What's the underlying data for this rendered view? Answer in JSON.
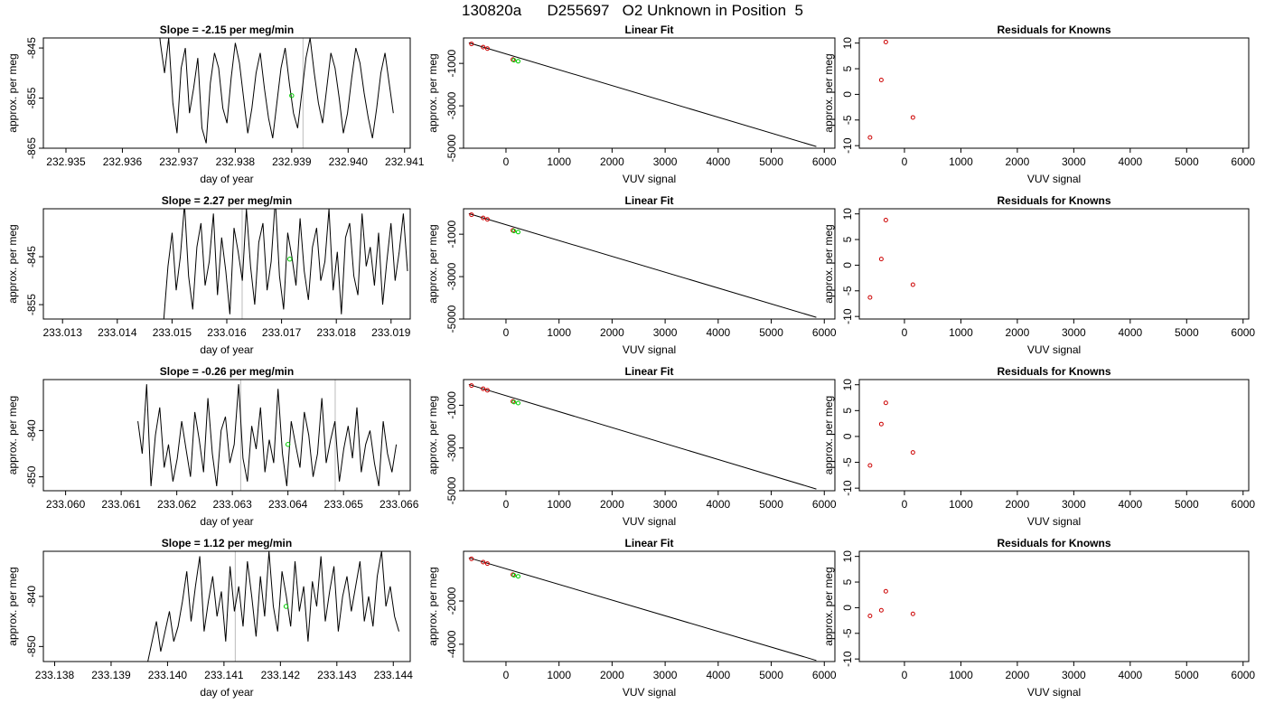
{
  "page_title": "130820a      D255697   O2 Unknown in Position  5",
  "colors": {
    "trace": "#000000",
    "marker_green": "#00cc00",
    "marker_red": "#cc0000",
    "gray_line": "#bbbbbb"
  },
  "chart_data": [
    {
      "type": "line",
      "title": "Slope =  -2.15  per meg/min",
      "xlabel": "day of year",
      "ylabel": "approx. per meg",
      "xlim": [
        232.9346,
        232.9411
      ],
      "ylim": [
        -865,
        -843
      ],
      "xticks": [
        "232.935",
        "232.936",
        "232.937",
        "232.938",
        "232.939",
        "232.940",
        "232.941"
      ],
      "yticks": [
        "-845",
        "-855",
        "-865"
      ],
      "gray_lines": [
        232.9392
      ],
      "x_start": 232.9366,
      "x_end": 232.9408,
      "y": [
        -836,
        -844,
        -850,
        -843,
        -856,
        -862,
        -849,
        -845,
        -858,
        -853,
        -847,
        -861,
        -864,
        -852,
        -846,
        -849,
        -857,
        -860,
        -851,
        -844,
        -848,
        -855,
        -862,
        -857,
        -850,
        -846,
        -853,
        -859,
        -863,
        -856,
        -849,
        -845,
        -852,
        -858,
        -861,
        -854,
        -847,
        -843,
        -850,
        -856,
        -860,
        -853,
        -846,
        -849,
        -855,
        -862,
        -858,
        -851,
        -845,
        -848,
        -854,
        -859,
        -863,
        -857,
        -850,
        -846,
        -852,
        -858
      ],
      "green_point": {
        "x": 232.939,
        "y": -854.5
      }
    },
    {
      "type": "scatter",
      "title": "Linear Fit",
      "xlabel": "VUV signal",
      "ylabel": "approx. per meg",
      "xlim": [
        -800,
        6200
      ],
      "ylim": [
        -5000,
        200
      ],
      "xticks": [
        0,
        1000,
        2000,
        3000,
        4000,
        5000,
        6000
      ],
      "yticks": [
        -1000,
        -3000,
        -5000
      ],
      "red_points": [
        {
          "x": -650,
          "y": -80
        },
        {
          "x": -430,
          "y": -230
        },
        {
          "x": -350,
          "y": -300
        },
        {
          "x": 130,
          "y": -820
        }
      ],
      "green_points": [
        {
          "x": 150,
          "y": -850
        },
        {
          "x": 230,
          "y": -900
        }
      ],
      "fit_line": {
        "x1": -700,
        "y1": -30,
        "x2": 5850,
        "y2": -4920
      }
    },
    {
      "type": "scatter",
      "title": "Residuals for Knowns",
      "xlabel": "VUV signal",
      "ylabel": "approx. per meg",
      "xlim": [
        -800,
        6100
      ],
      "ylim": [
        -10.5,
        11
      ],
      "xticks": [
        0,
        1000,
        2000,
        3000,
        4000,
        5000,
        6000
      ],
      "yticks": [
        10,
        5,
        0,
        -5,
        -10
      ],
      "red_points": [
        {
          "x": -610,
          "y": -8.4
        },
        {
          "x": -410,
          "y": 2.8
        },
        {
          "x": -330,
          "y": 10.2
        },
        {
          "x": 150,
          "y": -4.5
        }
      ]
    },
    {
      "type": "line",
      "title": "Slope =  2.27  per meg/min",
      "xlabel": "day of year",
      "ylabel": "approx. per meg",
      "xlim": [
        233.01265,
        233.01935
      ],
      "ylim": [
        -858,
        -835
      ],
      "xticks": [
        "233.013",
        "233.014",
        "233.015",
        "233.016",
        "233.017",
        "233.018",
        "233.019"
      ],
      "yticks": [
        "-845",
        "-855"
      ],
      "gray_lines": [
        233.01628
      ],
      "x_start": 233.01485,
      "x_end": 233.0193,
      "y": [
        -858,
        -847,
        -840,
        -852,
        -845,
        -834,
        -849,
        -856,
        -843,
        -838,
        -851,
        -846,
        -836,
        -853,
        -841,
        -848,
        -857,
        -839,
        -844,
        -850,
        -835,
        -847,
        -855,
        -842,
        -838,
        -852,
        -846,
        -833,
        -849,
        -856,
        -840,
        -845,
        -851,
        -837,
        -848,
        -854,
        -843,
        -839,
        -850,
        -846,
        -835,
        -852,
        -844,
        -857,
        -841,
        -838,
        -849,
        -853,
        -836,
        -847,
        -843,
        -851,
        -840,
        -855,
        -846,
        -838,
        -850,
        -844,
        -836,
        -848
      ],
      "green_point": {
        "x": 233.01715,
        "y": -845.5
      }
    },
    {
      "type": "scatter",
      "title": "Linear Fit",
      "xlabel": "VUV signal",
      "ylabel": "approx. per meg",
      "xlim": [
        -800,
        6200
      ],
      "ylim": [
        -5000,
        200
      ],
      "xticks": [
        0,
        1000,
        2000,
        3000,
        4000,
        5000,
        6000
      ],
      "yticks": [
        -1000,
        -3000,
        -5000
      ],
      "red_points": [
        {
          "x": -650,
          "y": -80
        },
        {
          "x": -430,
          "y": -230
        },
        {
          "x": -350,
          "y": -300
        },
        {
          "x": 130,
          "y": -820
        }
      ],
      "green_points": [
        {
          "x": 150,
          "y": -850
        },
        {
          "x": 230,
          "y": -900
        }
      ],
      "fit_line": {
        "x1": -700,
        "y1": -30,
        "x2": 5850,
        "y2": -4920
      }
    },
    {
      "type": "scatter",
      "title": "Residuals for Knowns",
      "xlabel": "VUV signal",
      "ylabel": "approx. per meg",
      "xlim": [
        -800,
        6100
      ],
      "ylim": [
        -10.5,
        11
      ],
      "xticks": [
        0,
        1000,
        2000,
        3000,
        4000,
        5000,
        6000
      ],
      "yticks": [
        10,
        5,
        0,
        -5,
        -10
      ],
      "red_points": [
        {
          "x": -610,
          "y": -6.3
        },
        {
          "x": -410,
          "y": 1.2
        },
        {
          "x": -330,
          "y": 8.8
        },
        {
          "x": 150,
          "y": -3.8
        }
      ]
    },
    {
      "type": "line",
      "title": "Slope =  -0.26  per meg/min",
      "xlabel": "day of year",
      "ylabel": "approx. per meg",
      "xlim": [
        233.0596,
        233.0662
      ],
      "ylim": [
        -853,
        -829
      ],
      "xticks": [
        "233.060",
        "233.061",
        "233.062",
        "233.063",
        "233.064",
        "233.065",
        "233.066"
      ],
      "yticks": [
        "-840",
        "-850"
      ],
      "gray_lines": [
        233.06315,
        233.06485
      ],
      "x_start": 233.0613,
      "x_end": 233.06595,
      "y": [
        -838,
        -845,
        -830,
        -852,
        -841,
        -835,
        -848,
        -843,
        -851,
        -846,
        -838,
        -844,
        -850,
        -836,
        -842,
        -849,
        -833,
        -845,
        -852,
        -840,
        -837,
        -847,
        -843,
        -830,
        -846,
        -851,
        -839,
        -844,
        -835,
        -849,
        -842,
        -847,
        -831,
        -845,
        -852,
        -838,
        -843,
        -848,
        -836,
        -841,
        -850,
        -845,
        -833,
        -847,
        -842,
        -838,
        -851,
        -844,
        -839,
        -846,
        -835,
        -849,
        -843,
        -840,
        -847,
        -852,
        -838,
        -845,
        -849,
        -843
      ],
      "green_point": {
        "x": 233.064,
        "y": -843
      }
    },
    {
      "type": "scatter",
      "title": "Linear Fit",
      "xlabel": "VUV signal",
      "ylabel": "approx. per meg",
      "xlim": [
        -800,
        6200
      ],
      "ylim": [
        -5000,
        200
      ],
      "xticks": [
        0,
        1000,
        2000,
        3000,
        4000,
        5000,
        6000
      ],
      "yticks": [
        -1000,
        -3000,
        -5000
      ],
      "red_points": [
        {
          "x": -650,
          "y": -80
        },
        {
          "x": -430,
          "y": -230
        },
        {
          "x": -350,
          "y": -300
        },
        {
          "x": 130,
          "y": -820
        }
      ],
      "green_points": [
        {
          "x": 150,
          "y": -850
        },
        {
          "x": 230,
          "y": -900
        }
      ],
      "fit_line": {
        "x1": -700,
        "y1": -30,
        "x2": 5850,
        "y2": -4920
      }
    },
    {
      "type": "scatter",
      "title": "Residuals for Knowns",
      "xlabel": "VUV signal",
      "ylabel": "approx. per meg",
      "xlim": [
        -800,
        6100
      ],
      "ylim": [
        -10.5,
        11
      ],
      "xticks": [
        0,
        1000,
        2000,
        3000,
        4000,
        5000,
        6000
      ],
      "yticks": [
        10,
        5,
        0,
        -5,
        -10
      ],
      "red_points": [
        {
          "x": -610,
          "y": -5.6
        },
        {
          "x": -410,
          "y": 2.4
        },
        {
          "x": -330,
          "y": 6.5
        },
        {
          "x": 150,
          "y": -3.1
        }
      ]
    },
    {
      "type": "line",
      "title": "Slope =  1.12  per meg/min",
      "xlabel": "day of year",
      "ylabel": "approx. per meg",
      "xlim": [
        233.1378,
        233.1443
      ],
      "ylim": [
        -853,
        -831
      ],
      "xticks": [
        "233.138",
        "233.139",
        "233.140",
        "233.141",
        "233.142",
        "233.143",
        "233.144"
      ],
      "yticks": [
        "-840",
        "-850"
      ],
      "gray_lines": [
        233.1412
      ],
      "x_start": 233.13965,
      "x_end": 233.1441,
      "y": [
        -853,
        -849,
        -845,
        -851,
        -847,
        -843,
        -849,
        -846,
        -841,
        -835,
        -845,
        -838,
        -832,
        -847,
        -841,
        -836,
        -844,
        -839,
        -849,
        -834,
        -843,
        -838,
        -846,
        -833,
        -840,
        -848,
        -836,
        -844,
        -831,
        -842,
        -847,
        -835,
        -840,
        -846,
        -833,
        -843,
        -838,
        -849,
        -837,
        -842,
        -832,
        -845,
        -839,
        -834,
        -847,
        -840,
        -836,
        -843,
        -838,
        -833,
        -845,
        -840,
        -846,
        -836,
        -831,
        -842,
        -838,
        -844,
        -847
      ],
      "green_point": {
        "x": 233.1421,
        "y": -842
      }
    },
    {
      "type": "scatter",
      "title": "Linear Fit",
      "xlabel": "VUV signal",
      "ylabel": "approx. per meg",
      "xlim": [
        -800,
        6200
      ],
      "ylim": [
        -4800,
        300
      ],
      "xticks": [
        0,
        1000,
        2000,
        3000,
        4000,
        5000,
        6000
      ],
      "yticks": [
        -2000,
        -4000
      ],
      "red_points": [
        {
          "x": -650,
          "y": -50
        },
        {
          "x": -430,
          "y": -200
        },
        {
          "x": -350,
          "y": -270
        },
        {
          "x": 130,
          "y": -780
        }
      ],
      "green_points": [
        {
          "x": 150,
          "y": -810
        },
        {
          "x": 230,
          "y": -860
        }
      ],
      "fit_line": {
        "x1": -700,
        "y1": 0,
        "x2": 5850,
        "y2": -4750
      }
    },
    {
      "type": "scatter",
      "title": "Residuals for Knowns",
      "xlabel": "VUV signal",
      "ylabel": "approx. per meg",
      "xlim": [
        -800,
        6100
      ],
      "ylim": [
        -10.5,
        11
      ],
      "xticks": [
        0,
        1000,
        2000,
        3000,
        4000,
        5000,
        6000
      ],
      "yticks": [
        10,
        5,
        0,
        -5,
        -10
      ],
      "red_points": [
        {
          "x": -610,
          "y": -1.6
        },
        {
          "x": -410,
          "y": -0.5
        },
        {
          "x": -330,
          "y": 3.2
        },
        {
          "x": 150,
          "y": -1.2
        }
      ]
    }
  ]
}
